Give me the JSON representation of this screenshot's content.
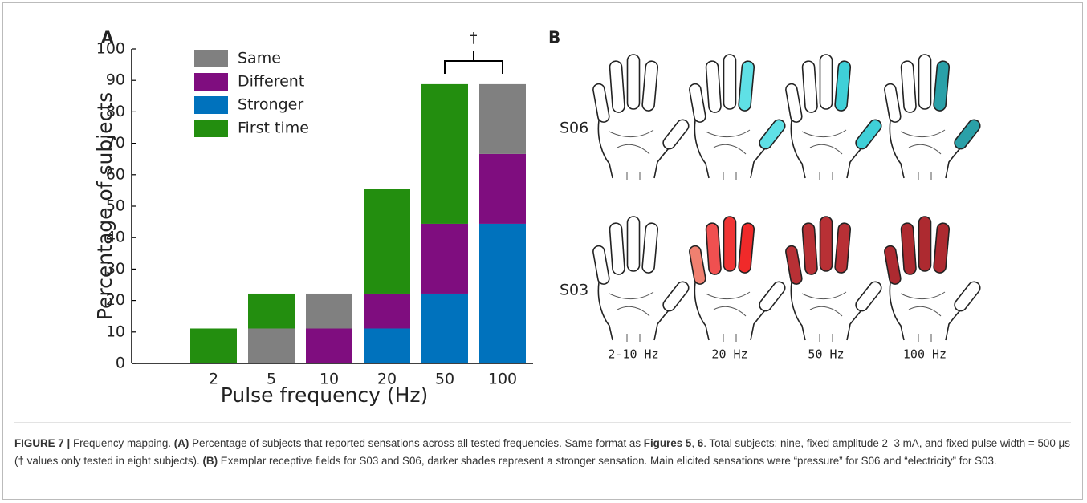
{
  "chart_data": {
    "type": "stacked_bar",
    "panel_label": "A",
    "x_label": "Pulse frequency (Hz)",
    "y_label": "Percentage of subjects",
    "categories": [
      "2",
      "5",
      "10",
      "20",
      "50",
      "100"
    ],
    "series": [
      {
        "name": "Same",
        "color": "#808080",
        "values": [
          0,
          11.1,
          11.1,
          0,
          0,
          22.2
        ]
      },
      {
        "name": "Different",
        "color": "#7f0d7f",
        "values": [
          0,
          0,
          11.1,
          11.1,
          22.2,
          22.2
        ]
      },
      {
        "name": "Stronger",
        "color": "#0072bd",
        "values": [
          0,
          0,
          0,
          11.1,
          22.2,
          44.4
        ]
      },
      {
        "name": "First time",
        "color": "#238e0f",
        "values": [
          11.1,
          11.1,
          0,
          33.3,
          44.4,
          0
        ]
      }
    ],
    "ylim": [
      0,
      100
    ],
    "yticks": [
      0,
      10,
      20,
      30,
      40,
      50,
      60,
      70,
      80,
      90,
      100
    ],
    "annotation": "†",
    "grid": false
  },
  "panel_b": {
    "panel_label": "B",
    "rows": [
      "S06",
      "S03"
    ],
    "columns": [
      "2-10 Hz",
      "20 Hz",
      "50 Hz",
      "100 Hz"
    ]
  },
  "caption": [
    {
      "text": "FIGURE 7 |",
      "bold": true
    },
    {
      "text": " Frequency mapping. ",
      "bold": false
    },
    {
      "text": "(A)",
      "bold": true
    },
    {
      "text": " Percentage of subjects that reported sensations across all tested frequencies. Same format as ",
      "bold": false
    },
    {
      "text": "Figures 5",
      "bold": true
    },
    {
      "text": ", ",
      "bold": false
    },
    {
      "text": "6",
      "bold": true
    },
    {
      "text": ". Total subjects: nine, fixed amplitude 2–3 mA, and fixed pulse width = 500 μs († values only tested in eight subjects). ",
      "bold": false
    },
    {
      "text": "(B)",
      "bold": true
    },
    {
      "text": " Exemplar receptive fields for S03 and S06, darker shades represent a stronger sensation. Main elicited sensations were “pressure” for S06 and “electricity” for S03.",
      "bold": false
    }
  ]
}
